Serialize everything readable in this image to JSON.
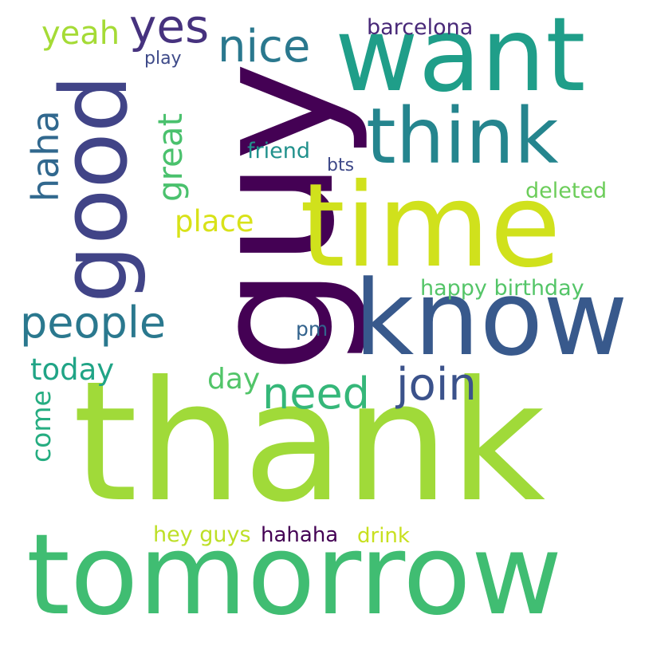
{
  "words": {
    "thank": {
      "text": "thank",
      "color": "#a0da39"
    },
    "tomorrow": {
      "text": "tomorrow",
      "color": "#40bd72"
    },
    "guy": {
      "text": "guy",
      "color": "#440154"
    },
    "time": {
      "text": "time",
      "color": "#d0e11c"
    },
    "know": {
      "text": "know",
      "color": "#38598c"
    },
    "want": {
      "text": "want",
      "color": "#1f9e89"
    },
    "think": {
      "text": "think",
      "color": "#25858e"
    },
    "good": {
      "text": "good",
      "color": "#414487"
    },
    "people": {
      "text": "people",
      "color": "#2a788e"
    },
    "need": {
      "text": "need",
      "color": "#35b779"
    },
    "join": {
      "text": "join",
      "color": "#3b528b"
    },
    "nice": {
      "text": "nice",
      "color": "#2a788e"
    },
    "yes": {
      "text": "yes",
      "color": "#46327e"
    },
    "yeah": {
      "text": "yeah",
      "color": "#a5db36"
    },
    "haha": {
      "text": "haha",
      "color": "#31688e"
    },
    "great": {
      "text": "great",
      "color": "#4ac16d"
    },
    "place": {
      "text": "place",
      "color": "#d8e219"
    },
    "today": {
      "text": "today",
      "color": "#20a486"
    },
    "day": {
      "text": "day",
      "color": "#52c569"
    },
    "come": {
      "text": "come",
      "color": "#26ad81"
    },
    "happy_birthday": {
      "text": "happy birthday",
      "color": "#54c568"
    },
    "deleted": {
      "text": "deleted",
      "color": "#6ccd5a"
    },
    "friend": {
      "text": "friend",
      "color": "#21918c"
    },
    "bts": {
      "text": "bts",
      "color": "#3e4989"
    },
    "barcelona": {
      "text": "barcelona",
      "color": "#482878"
    },
    "play": {
      "text": "play",
      "color": "#3e4a89"
    },
    "pm": {
      "text": "pm",
      "color": "#33638d"
    },
    "hey_guys": {
      "text": "hey guys",
      "color": "#bddf26"
    },
    "hahaha": {
      "text": "hahaha",
      "color": "#440154"
    },
    "drink": {
      "text": "drink",
      "color": "#c8e020"
    }
  }
}
